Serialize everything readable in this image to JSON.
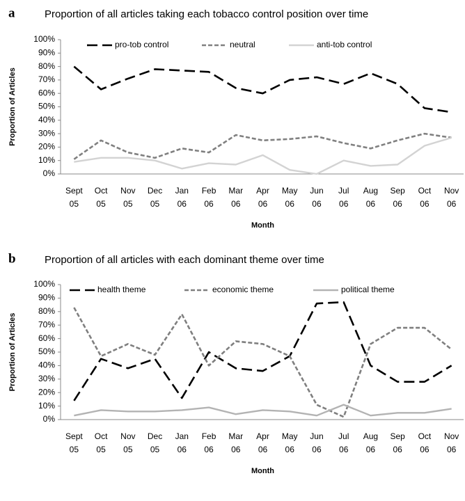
{
  "chart_data": [
    {
      "type": "line",
      "panel": "a",
      "title": "Proportion of all articles taking each tobacco control position over time",
      "x_label": "Month",
      "y_label": "Proportion of Articles",
      "categories": [
        "Sept 05",
        "Oct 05",
        "Nov 05",
        "Dec 05",
        "Jan 06",
        "Feb 06",
        "Mar 06",
        "Apr 06",
        "May 06",
        "Jun 06",
        "Jul 06",
        "Aug 06",
        "Sep 06",
        "Oct 06",
        "Nov 06"
      ],
      "ylim": [
        0,
        100
      ],
      "yticks": [
        {
          "value": 0,
          "label": "0%"
        },
        {
          "value": 10,
          "label": "10%"
        },
        {
          "value": 20,
          "label": "20%"
        },
        {
          "value": 30,
          "label": "30%"
        },
        {
          "value": 40,
          "label": "40%"
        },
        {
          "value": 50,
          "label": "50%"
        },
        {
          "value": 60,
          "label": "60%"
        },
        {
          "value": 70,
          "label": "70%"
        },
        {
          "value": 80,
          "label": "80%"
        },
        {
          "value": 90,
          "label": "90%"
        },
        {
          "value": 100,
          "label": "100%"
        }
      ],
      "grid": false,
      "legend": "top",
      "series": [
        {
          "name": "pro-tob control",
          "color": "#000000",
          "style": "long-dash",
          "values": [
            80,
            63,
            71,
            78,
            77,
            76,
            64,
            60,
            70,
            72,
            67,
            75,
            67,
            49,
            46
          ]
        },
        {
          "name": "neutral",
          "color": "#808080",
          "style": "short-dash",
          "values": [
            11,
            25,
            16,
            12,
            19,
            16,
            29,
            25,
            26,
            28,
            23,
            19,
            25,
            30,
            27
          ]
        },
        {
          "name": "anti-tob control",
          "color": "#d3d3d3",
          "style": "solid",
          "values": [
            9,
            12,
            12,
            10,
            4,
            8,
            7,
            14,
            3,
            0,
            10,
            6,
            7,
            21,
            27
          ]
        }
      ]
    },
    {
      "type": "line",
      "panel": "b",
      "title": "Proportion of all articles with each dominant theme over time",
      "x_label": "Month",
      "y_label": "Proportion of Articles",
      "categories": [
        "Sept 05",
        "Oct 05",
        "Nov 05",
        "Dec 05",
        "Jan 06",
        "Feb 06",
        "Mar 06",
        "Apr 06",
        "May 06",
        "Jun 06",
        "Jul 06",
        "Aug 06",
        "Sep 06",
        "Oct 06",
        "Nov 06"
      ],
      "ylim": [
        0,
        100
      ],
      "yticks": [
        {
          "value": 0,
          "label": "0%"
        },
        {
          "value": 10,
          "label": "10%"
        },
        {
          "value": 20,
          "label": "20%"
        },
        {
          "value": 30,
          "label": "30%"
        },
        {
          "value": 40,
          "label": "40%"
        },
        {
          "value": 50,
          "label": "50%"
        },
        {
          "value": 60,
          "label": "60%"
        },
        {
          "value": 70,
          "label": "70%"
        },
        {
          "value": 80,
          "label": "80%"
        },
        {
          "value": 90,
          "label": "90%"
        },
        {
          "value": 100,
          "label": "100%"
        }
      ],
      "grid": false,
      "legend": "top",
      "series": [
        {
          "name": "health theme",
          "color": "#000000",
          "style": "long-dash",
          "values": [
            14,
            45,
            38,
            45,
            16,
            50,
            38,
            36,
            47,
            86,
            87,
            40,
            28,
            28,
            40
          ]
        },
        {
          "name": "economic theme",
          "color": "#7f7f7f",
          "style": "short-dash",
          "values": [
            83,
            47,
            56,
            48,
            78,
            40,
            58,
            56,
            47,
            11,
            2,
            56,
            68,
            68,
            52
          ]
        },
        {
          "name": "political theme",
          "color": "#b3b3b3",
          "style": "solid",
          "values": [
            3,
            7,
            6,
            6,
            7,
            9,
            4,
            7,
            6,
            3,
            11,
            3,
            5,
            5,
            8
          ]
        }
      ]
    }
  ]
}
